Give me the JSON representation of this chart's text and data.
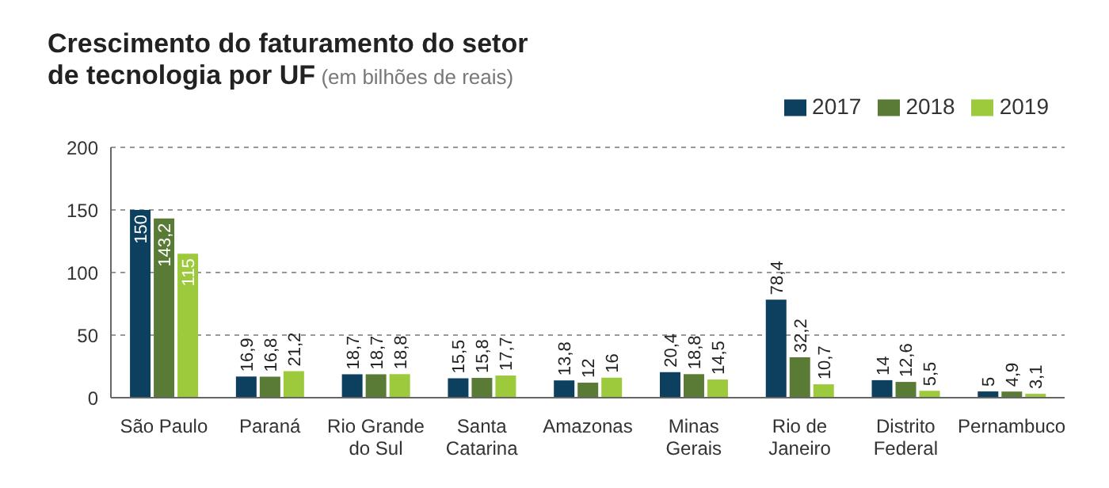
{
  "chart_data": {
    "type": "bar",
    "title": "Crescimento do faturamento do setor de tecnologia por UF",
    "subtitle": "(em bilhões de reais)",
    "categories": [
      "São Paulo",
      "Paraná",
      "Rio Grande do Sul",
      "Santa Catarina",
      "Amazonas",
      "Minas Gerais",
      "Rio de Janeiro",
      "Distrito Federal",
      "Pernambuco"
    ],
    "series": [
      {
        "name": "2017",
        "color": "#0d3f5e",
        "values": [
          150,
          16.9,
          18.7,
          15.5,
          13.8,
          20.4,
          78.4,
          14,
          5
        ],
        "value_labels": [
          "150",
          "16,9",
          "18,7",
          "15,5",
          "13,8",
          "20,4",
          "78,4",
          "14",
          "5"
        ]
      },
      {
        "name": "2018",
        "color": "#5a7b35",
        "values": [
          143.2,
          16.8,
          18.7,
          15.8,
          12,
          18.8,
          32.2,
          12.6,
          4.9
        ],
        "value_labels": [
          "143,2",
          "16,8",
          "18,7",
          "15,8",
          "12",
          "18,8",
          "32,2",
          "12,6",
          "4,9"
        ]
      },
      {
        "name": "2019",
        "color": "#9dc93c",
        "values": [
          115,
          21.2,
          18.8,
          17.7,
          16,
          14.5,
          10.7,
          5.5,
          3.1
        ],
        "value_labels": [
          "115",
          "21,2",
          "18,8",
          "17,7",
          "16",
          "14,5",
          "10,7",
          "5,5",
          "3,1"
        ]
      }
    ],
    "ylim": [
      0,
      200
    ],
    "yticks": [
      0,
      50,
      100,
      150,
      200
    ],
    "grid": "y",
    "legend": "top right"
  }
}
